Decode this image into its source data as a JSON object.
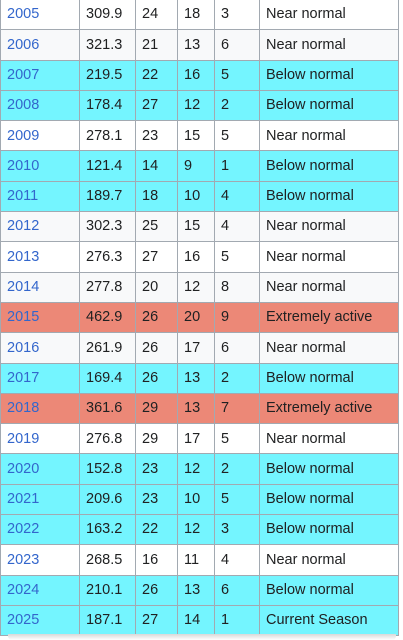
{
  "table": {
    "rows": [
      {
        "year": "2005",
        "ace": "309.9",
        "ts": "24",
        "hu": "18",
        "mh": "3",
        "classification": "Near normal",
        "status": "near"
      },
      {
        "year": "2006",
        "ace": "321.3",
        "ts": "21",
        "hu": "13",
        "mh": "6",
        "classification": "Near normal",
        "status": "near"
      },
      {
        "year": "2007",
        "ace": "219.5",
        "ts": "22",
        "hu": "16",
        "mh": "5",
        "classification": "Below normal",
        "status": "below"
      },
      {
        "year": "2008",
        "ace": "178.4",
        "ts": "27",
        "hu": "12",
        "mh": "2",
        "classification": "Below normal",
        "status": "below"
      },
      {
        "year": "2009",
        "ace": "278.1",
        "ts": "23",
        "hu": "15",
        "mh": "5",
        "classification": "Near normal",
        "status": "near"
      },
      {
        "year": "2010",
        "ace": "121.4",
        "ts": "14",
        "hu": "9",
        "mh": "1",
        "classification": "Below normal",
        "status": "below"
      },
      {
        "year": "2011",
        "ace": "189.7",
        "ts": "18",
        "hu": "10",
        "mh": "4",
        "classification": "Below normal",
        "status": "below"
      },
      {
        "year": "2012",
        "ace": "302.3",
        "ts": "25",
        "hu": "15",
        "mh": "4",
        "classification": "Near normal",
        "status": "near"
      },
      {
        "year": "2013",
        "ace": "276.3",
        "ts": "27",
        "hu": "16",
        "mh": "5",
        "classification": "Near normal",
        "status": "near"
      },
      {
        "year": "2014",
        "ace": "277.8",
        "ts": "20",
        "hu": "12",
        "mh": "8",
        "classification": "Near normal",
        "status": "near"
      },
      {
        "year": "2015",
        "ace": "462.9",
        "ts": "26",
        "hu": "20",
        "mh": "9",
        "classification": "Extremely active",
        "status": "extreme"
      },
      {
        "year": "2016",
        "ace": "261.9",
        "ts": "26",
        "hu": "17",
        "mh": "6",
        "classification": "Near normal",
        "status": "near"
      },
      {
        "year": "2017",
        "ace": "169.4",
        "ts": "26",
        "hu": "13",
        "mh": "2",
        "classification": "Below normal",
        "status": "below"
      },
      {
        "year": "2018",
        "ace": "361.6",
        "ts": "29",
        "hu": "13",
        "mh": "7",
        "classification": "Extremely active",
        "status": "extreme"
      },
      {
        "year": "2019",
        "ace": "276.8",
        "ts": "29",
        "hu": "17",
        "mh": "5",
        "classification": "Near normal",
        "status": "near"
      },
      {
        "year": "2020",
        "ace": "152.8",
        "ts": "23",
        "hu": "12",
        "mh": "2",
        "classification": "Below normal",
        "status": "below"
      },
      {
        "year": "2021",
        "ace": "209.6",
        "ts": "23",
        "hu": "10",
        "mh": "5",
        "classification": "Below normal",
        "status": "below"
      },
      {
        "year": "2022",
        "ace": "163.2",
        "ts": "22",
        "hu": "12",
        "mh": "3",
        "classification": "Below normal",
        "status": "below"
      },
      {
        "year": "2023",
        "ace": "268.5",
        "ts": "16",
        "hu": "11",
        "mh": "4",
        "classification": "Near normal",
        "status": "near"
      },
      {
        "year": "2024",
        "ace": "210.1",
        "ts": "26",
        "hu": "13",
        "mh": "6",
        "classification": "Below normal",
        "status": "below"
      },
      {
        "year": "2025",
        "ace": "187.1",
        "ts": "27",
        "hu": "14",
        "mh": "1",
        "classification": "Current Season",
        "status": "current"
      }
    ]
  },
  "colors": {
    "below": "#74f5ff",
    "near": "#ffffff",
    "extreme": "#ec8877",
    "current": "#74f5ff",
    "link": "#3366cc",
    "border": "#a2a9b1"
  }
}
